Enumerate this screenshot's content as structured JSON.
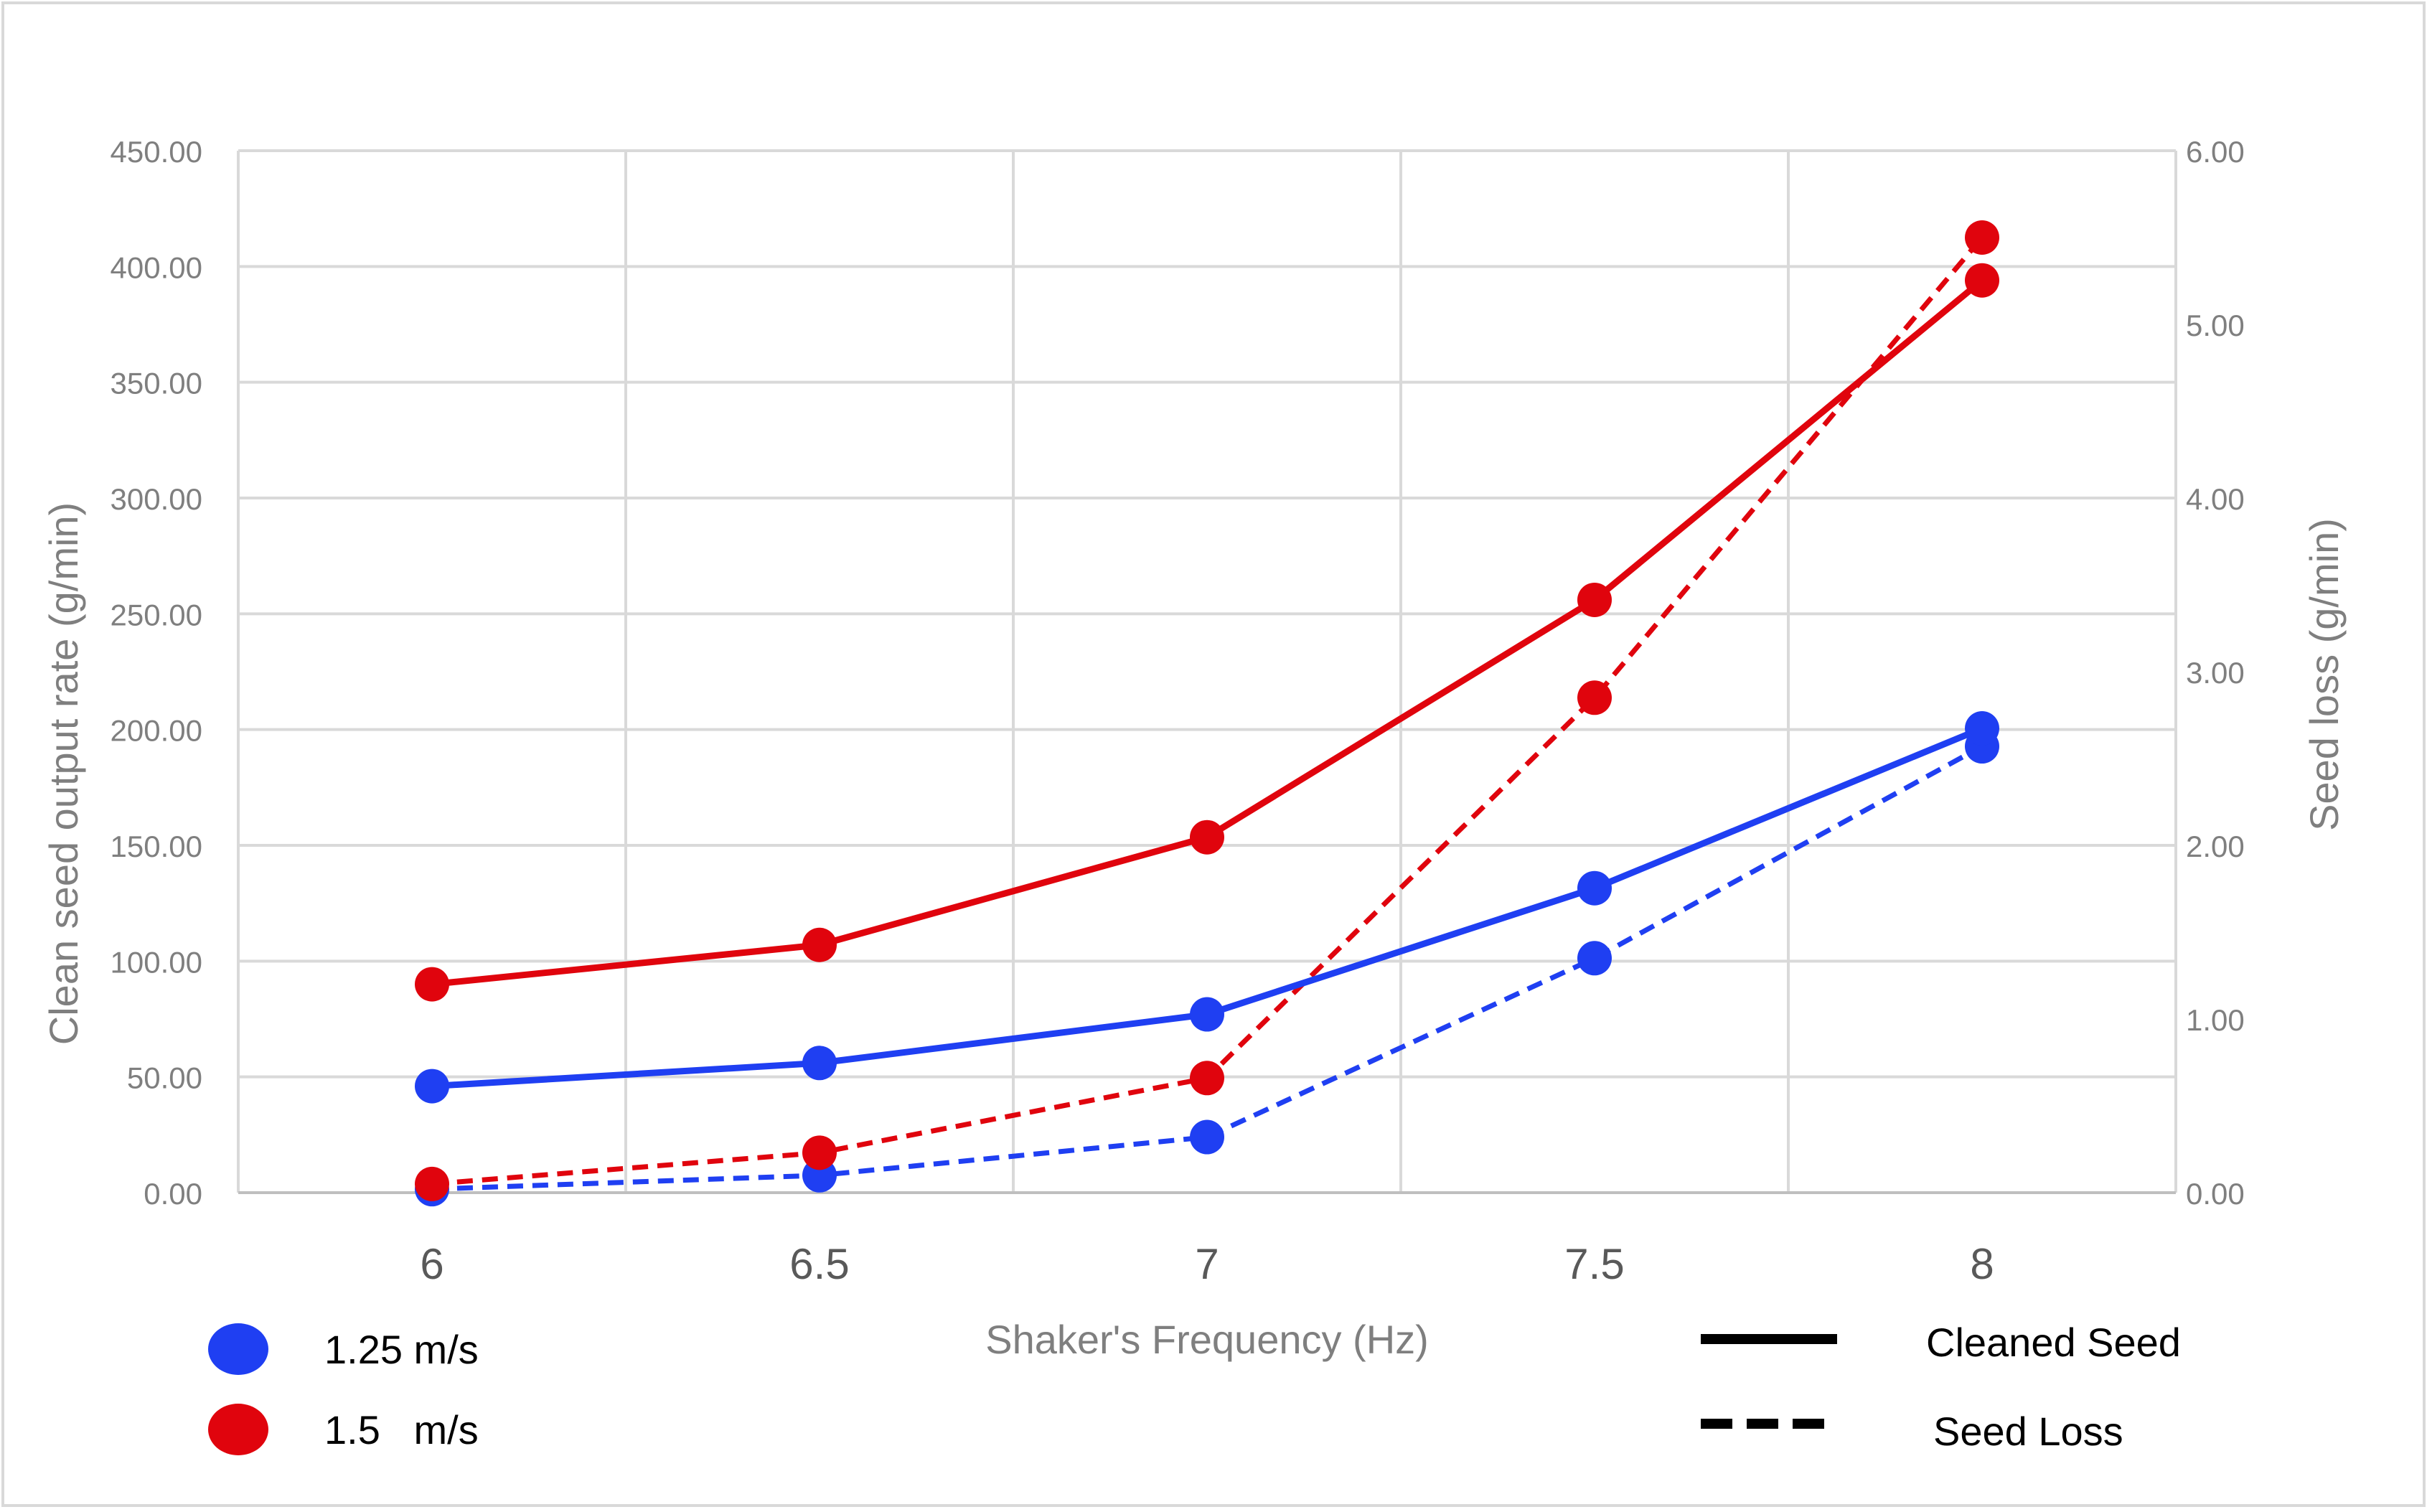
{
  "chart_data": {
    "type": "line",
    "xlabel": "Shaker's Frequency (Hz)",
    "ylabel": "Clean seed output rate (g/min)",
    "y2label": "Seed loss (g/min)",
    "categories": [
      "6",
      "6.5",
      "7",
      "7.5",
      "8"
    ],
    "ylim": [
      0,
      450
    ],
    "y2lim": [
      0,
      6
    ],
    "y_ticks": [
      "0.00",
      "50.00",
      "100.00",
      "150.00",
      "200.00",
      "250.00",
      "300.00",
      "350.00",
      "400.00",
      "450.00"
    ],
    "y2_ticks": [
      "0.00",
      "1.00",
      "2.00",
      "3.00",
      "4.00",
      "5.00",
      "6.00"
    ],
    "grid": true,
    "series": [
      {
        "name": "1.25 m/s Cleaned Seed",
        "axis": "left",
        "color": "#1f3ff2",
        "dash": "solid",
        "values": [
          46,
          56,
          77,
          131.5,
          200.5
        ]
      },
      {
        "name": "1.5 m/s Cleaned Seed",
        "axis": "left",
        "color": "#e0040d",
        "dash": "solid",
        "values": [
          90,
          107,
          153.5,
          256,
          394
        ]
      },
      {
        "name": "1.25 m/s Seed Loss",
        "axis": "right",
        "color": "#1f3ff2",
        "dash": "dashed",
        "values": [
          0.02,
          0.1,
          0.32,
          1.35,
          2.57
        ]
      },
      {
        "name": "1.5 m/s Seed Loss",
        "axis": "right",
        "color": "#e0040d",
        "dash": "dashed",
        "values": [
          0.05,
          0.23,
          0.66,
          2.85,
          5.5
        ]
      }
    ],
    "legend": {
      "speed_items": [
        {
          "label": "1.25 m/s",
          "color": "#1f3ff2"
        },
        {
          "label": "1.5   m/s",
          "color": "#e0040d"
        }
      ],
      "line_items": [
        {
          "label": "Cleaned Seed",
          "style": "solid"
        },
        {
          "label": "Seed Loss",
          "style": "dashed"
        }
      ]
    }
  }
}
